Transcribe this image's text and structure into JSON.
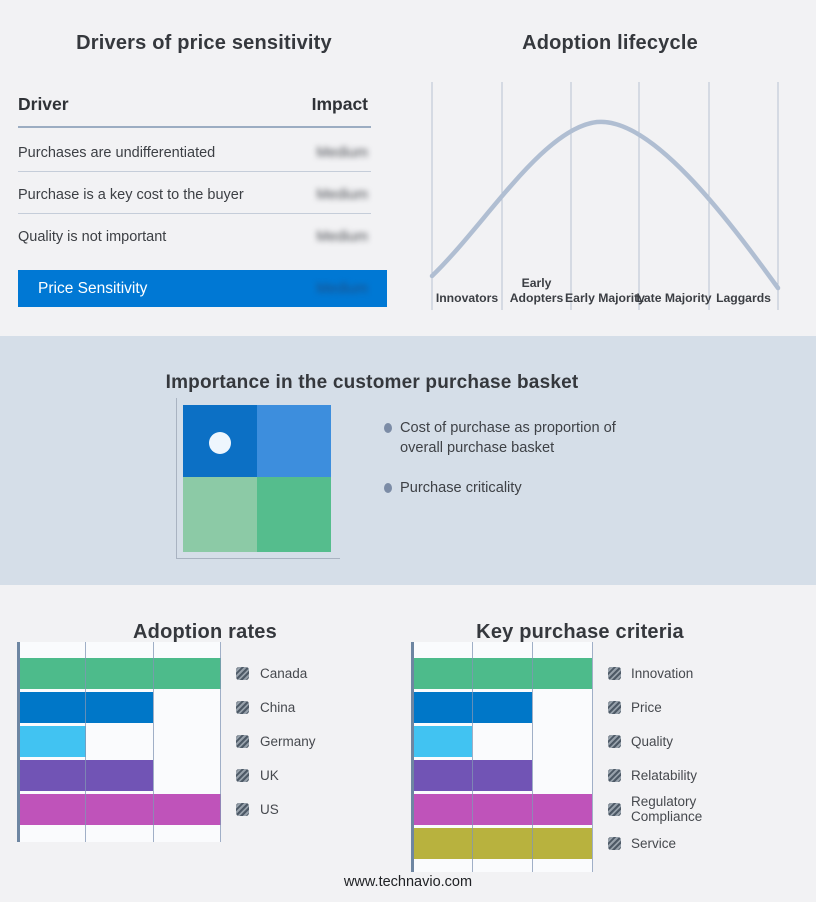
{
  "footer": {
    "url_text": "www.technavio.com"
  },
  "drivers_panel": {
    "title": "Drivers of price sensitivity",
    "highlight_color": "#0078d4",
    "table": {
      "col_driver": "Driver",
      "col_impact": "Impact",
      "rows": [
        {
          "driver": "Purchases are undifferentiated",
          "impact": "Medium",
          "impact_redacted": true
        },
        {
          "driver": "Purchase is a key cost to the buyer",
          "impact": "Medium",
          "impact_redacted": true
        },
        {
          "driver": "Quality is not important",
          "impact": "Medium",
          "impact_redacted": true
        }
      ],
      "highlight": {
        "driver": "Price Sensitivity",
        "impact": "Medium",
        "impact_redacted": true
      }
    }
  },
  "lifecycle_panel": {
    "title": "Adoption lifecycle"
  },
  "basket_panel": {
    "title": "Importance in the customer purchase basket",
    "bullets": [
      "Cost of purchase as proportion of overall purchase basket",
      "Purchase criticality"
    ],
    "background": "#d5dee8",
    "quadrant_colors": {
      "top_left": "#0c70c5",
      "top_right": "#3d8edd",
      "bottom_left": "#8ccaa6",
      "bottom_right": "#55bd8d"
    }
  },
  "chart_data": [
    {
      "id": "adoption-lifecycle",
      "type": "line",
      "shape": "bell-curve",
      "title": "Adoption lifecycle",
      "categories": [
        "Innovators",
        "Early Adopters",
        "Early Majority",
        "Late Majority",
        "Laggards"
      ],
      "peak_category": "Early Majority",
      "curve_color": "#b0bed2",
      "gridlines": 6,
      "values_labeled": false
    },
    {
      "id": "adoption-rates",
      "type": "bar",
      "orientation": "horizontal",
      "title": "Adoption rates",
      "categories": [
        "Canada",
        "China",
        "Germany",
        "UK",
        "US"
      ],
      "values": [
        3,
        2,
        1,
        2,
        3
      ],
      "colors": [
        "#4dbb8b",
        "#0077c8",
        "#41c3f2",
        "#7154b5",
        "#bf53ba"
      ],
      "xlim": [
        0,
        3
      ],
      "gridlines": 3,
      "legend_position": "right"
    },
    {
      "id": "key-purchase-criteria",
      "type": "bar",
      "orientation": "horizontal",
      "title": "Key purchase criteria",
      "categories": [
        "Innovation",
        "Price",
        "Quality",
        "Relatability",
        "Regulatory Compliance",
        "Service"
      ],
      "values": [
        3,
        2,
        1,
        2,
        3,
        3
      ],
      "colors": [
        "#4dbb8b",
        "#0077c8",
        "#41c3f2",
        "#7154b5",
        "#bf53ba",
        "#b8b23e"
      ],
      "xlim": [
        0,
        3
      ],
      "gridlines": 3,
      "legend_position": "right"
    }
  ]
}
